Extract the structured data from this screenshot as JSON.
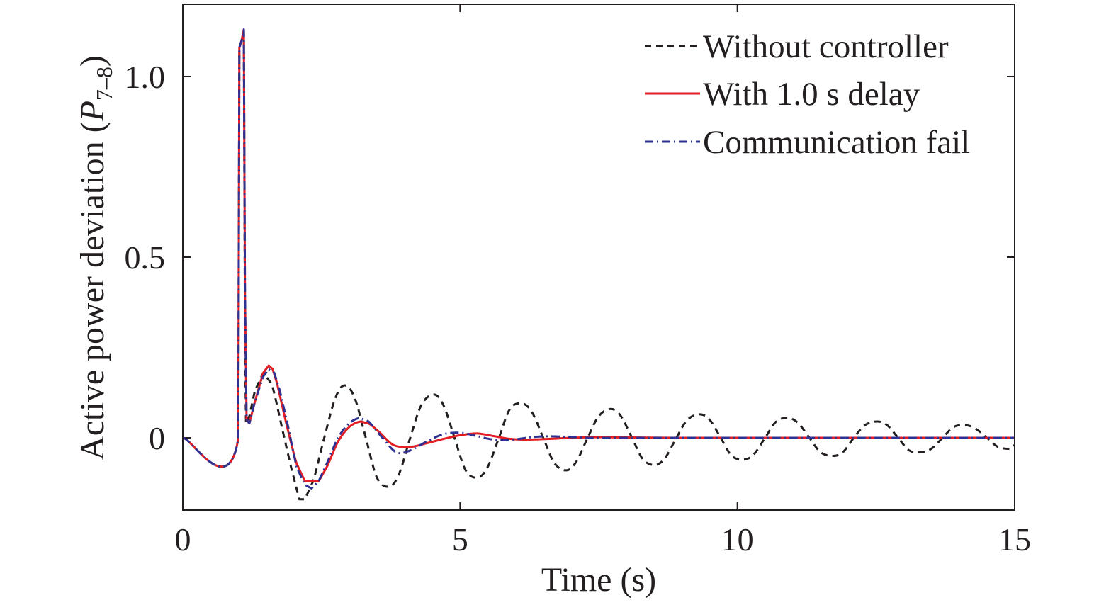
{
  "chart_data": {
    "type": "line",
    "title": "",
    "xlabel": "Time (s)",
    "ylabel": {
      "prefix": "Active power deviation (",
      "var": "P",
      "sub": "7–8",
      "suffix": ")"
    },
    "xlim": [
      0,
      15
    ],
    "ylim": [
      -0.2,
      1.2
    ],
    "xticks": [
      0,
      5,
      10,
      15
    ],
    "xtick_labels": [
      "0",
      "5",
      "10",
      "15"
    ],
    "yticks": [
      0,
      0.5,
      1.0
    ],
    "ytick_labels": [
      "0",
      "0.5",
      "1.0"
    ],
    "grid": false,
    "legend_position": "top-right",
    "series": [
      {
        "name": "Without controller",
        "color": "#231f20",
        "style": "dashed",
        "x": [
          0,
          1.0,
          1.02,
          1.06,
          1.1,
          1.12,
          1.14,
          1.2,
          1.3,
          1.45,
          1.6,
          1.8,
          1.95,
          2.1,
          2.2,
          2.35,
          2.55,
          2.75,
          2.92,
          3.1,
          3.3,
          3.5,
          3.72,
          3.9,
          4.1,
          4.3,
          4.52,
          4.7,
          4.9,
          5.1,
          5.32,
          5.5,
          5.7,
          5.9,
          6.12,
          6.3,
          6.5,
          6.7,
          6.92,
          7.1,
          7.3,
          7.5,
          7.72,
          7.9,
          8.1,
          8.3,
          8.52,
          8.7,
          8.9,
          9.1,
          9.32,
          9.5,
          9.7,
          9.9,
          10.12,
          10.3,
          10.5,
          10.7,
          10.92,
          11.1,
          11.3,
          11.5,
          11.72,
          11.9,
          12.1,
          12.3,
          12.52,
          12.7,
          12.9,
          13.1,
          13.32,
          13.5,
          13.7,
          13.9,
          14.12,
          14.3,
          14.5,
          14.7,
          14.92,
          15.0
        ],
        "y": [
          0,
          0,
          1.08,
          1.1,
          1.12,
          0.3,
          0.04,
          0.06,
          0.13,
          0.18,
          0.15,
          0.02,
          -0.08,
          -0.17,
          -0.17,
          -0.12,
          0.0,
          0.11,
          0.145,
          0.11,
          0.0,
          -0.11,
          -0.135,
          -0.1,
          0.0,
          0.09,
          0.12,
          0.09,
          0.0,
          -0.09,
          -0.11,
          -0.08,
          0.0,
          0.08,
          0.095,
          0.07,
          0.0,
          -0.07,
          -0.09,
          -0.065,
          0.0,
          0.06,
          0.08,
          0.06,
          0.0,
          -0.06,
          -0.075,
          -0.055,
          0.0,
          0.05,
          0.065,
          0.05,
          0.0,
          -0.05,
          -0.06,
          -0.045,
          0.0,
          0.045,
          0.055,
          0.04,
          0.0,
          -0.04,
          -0.05,
          -0.04,
          0.0,
          0.035,
          0.045,
          0.035,
          0.0,
          -0.035,
          -0.04,
          -0.03,
          0.0,
          0.03,
          0.035,
          0.025,
          0.0,
          -0.025,
          -0.03,
          -0.02
        ]
      },
      {
        "name": "With 1.0 s delay",
        "color": "#e31e24",
        "style": "solid",
        "x": [
          0,
          1.0,
          1.02,
          1.06,
          1.1,
          1.12,
          1.15,
          1.2,
          1.3,
          1.45,
          1.55,
          1.62,
          1.7,
          1.85,
          2.05,
          2.2,
          2.35,
          2.45,
          2.6,
          2.8,
          3.0,
          3.2,
          3.35,
          3.55,
          3.8,
          4.1,
          4.4,
          4.7,
          5.0,
          5.3,
          5.6,
          5.9,
          6.2,
          6.6,
          7.0,
          7.5,
          8.0,
          9.0,
          10.0,
          12.0,
          15.0
        ],
        "y": [
          0,
          0,
          1.08,
          1.1,
          1.13,
          0.4,
          0.05,
          0.04,
          0.1,
          0.18,
          0.2,
          0.19,
          0.15,
          0.05,
          -0.07,
          -0.12,
          -0.12,
          -0.12,
          -0.08,
          -0.01,
          0.03,
          0.045,
          0.04,
          0.015,
          -0.02,
          -0.025,
          -0.015,
          -0.003,
          0.007,
          0.012,
          0.005,
          -0.003,
          -0.005,
          -0.003,
          0.0,
          0.002,
          0.001,
          0.0,
          0.0,
          0.0,
          0.0
        ]
      },
      {
        "name": "Communication fail",
        "color": "#2e3192",
        "style": "dashdot",
        "x": [
          0,
          1.0,
          1.02,
          1.06,
          1.1,
          1.12,
          1.15,
          1.2,
          1.3,
          1.45,
          1.55,
          1.65,
          1.75,
          1.9,
          2.05,
          2.2,
          2.32,
          2.45,
          2.6,
          2.8,
          3.0,
          3.2,
          3.35,
          3.6,
          3.85,
          4.1,
          4.4,
          4.7,
          5.0,
          5.3,
          5.6,
          5.9,
          6.2,
          6.5,
          6.9,
          7.3,
          8.0,
          9.0,
          10.0,
          12.0,
          15.0
        ],
        "y": [
          0,
          0,
          1.08,
          1.1,
          1.13,
          0.4,
          0.05,
          0.04,
          0.1,
          0.17,
          0.19,
          0.18,
          0.13,
          0.03,
          -0.08,
          -0.13,
          -0.14,
          -0.12,
          -0.07,
          0.0,
          0.04,
          0.055,
          0.045,
          0.0,
          -0.04,
          -0.035,
          -0.01,
          0.01,
          0.014,
          0.005,
          -0.005,
          -0.006,
          0.0,
          0.004,
          0.003,
          0.0,
          0.0,
          0.0,
          0.0,
          0.0,
          0.0
        ]
      }
    ]
  }
}
